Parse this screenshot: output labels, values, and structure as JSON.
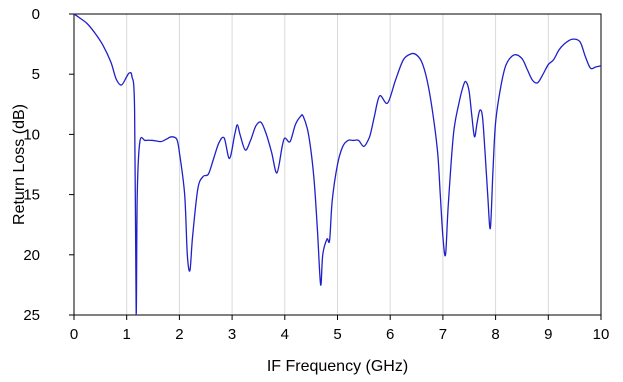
{
  "chart_data": {
    "type": "line",
    "title": "",
    "xlabel": "IF Frequency (GHz)",
    "ylabel": "Return Loss (dB)",
    "xlim": [
      0,
      10
    ],
    "ylim": [
      0,
      25
    ],
    "y_inverted": true,
    "x_ticks": [
      0,
      1,
      2,
      3,
      4,
      5,
      6,
      7,
      8,
      9,
      10
    ],
    "y_ticks": [
      0,
      5,
      10,
      15,
      20,
      25
    ],
    "grid": "vertical",
    "line_color": "#2020c8",
    "series": [
      {
        "x": [
          0.0,
          0.1,
          0.25,
          0.4,
          0.55,
          0.7,
          0.8,
          0.9,
          1.0,
          1.05,
          1.1,
          1.15,
          1.18,
          1.2,
          1.25,
          1.35,
          1.5,
          1.65,
          1.75,
          1.85,
          1.95,
          2.0,
          2.1,
          2.15,
          2.2,
          2.25,
          2.35,
          2.45,
          2.55,
          2.65,
          2.75,
          2.85,
          2.95,
          3.05,
          3.1,
          3.15,
          3.25,
          3.35,
          3.45,
          3.55,
          3.65,
          3.75,
          3.85,
          3.95,
          4.0,
          4.1,
          4.2,
          4.3,
          4.35,
          4.45,
          4.55,
          4.62,
          4.68,
          4.72,
          4.8,
          4.85,
          4.9,
          5.0,
          5.1,
          5.2,
          5.3,
          5.4,
          5.5,
          5.6,
          5.65,
          5.7,
          5.8,
          5.95,
          6.1,
          6.25,
          6.4,
          6.5,
          6.6,
          6.7,
          6.8,
          6.9,
          6.95,
          7.0,
          7.05,
          7.1,
          7.2,
          7.3,
          7.4,
          7.45,
          7.5,
          7.55,
          7.6,
          7.65,
          7.7,
          7.75,
          7.8,
          7.85,
          7.9,
          7.95,
          8.0,
          8.1,
          8.2,
          8.35,
          8.5,
          8.6,
          8.7,
          8.8,
          8.9,
          9.0,
          9.1,
          9.2,
          9.3,
          9.45,
          9.6,
          9.7,
          9.8,
          9.9,
          10.0
        ],
        "y": [
          0.0,
          0.3,
          0.8,
          1.6,
          2.6,
          4.0,
          5.4,
          5.9,
          5.2,
          4.9,
          5.2,
          8.0,
          25.0,
          15.0,
          10.6,
          10.5,
          10.5,
          10.6,
          10.4,
          10.2,
          10.4,
          11.5,
          15.0,
          20.0,
          21.3,
          18.5,
          14.5,
          13.5,
          13.3,
          12.0,
          10.7,
          10.3,
          12.0,
          10.0,
          9.2,
          10.0,
          11.3,
          10.5,
          9.3,
          9.0,
          10.0,
          11.5,
          13.2,
          11.0,
          10.3,
          10.6,
          9.2,
          8.5,
          8.5,
          10.0,
          13.5,
          18.0,
          22.5,
          20.0,
          18.7,
          18.8,
          15.5,
          12.5,
          11.0,
          10.5,
          10.5,
          10.5,
          11.0,
          10.3,
          9.5,
          8.5,
          6.8,
          7.4,
          5.5,
          3.8,
          3.3,
          3.4,
          4.0,
          5.5,
          8.0,
          11.5,
          15.0,
          18.5,
          20.0,
          16.0,
          10.0,
          7.5,
          5.8,
          5.7,
          6.5,
          8.5,
          10.2,
          9.0,
          8.0,
          8.5,
          11.5,
          15.0,
          17.8,
          13.0,
          9.0,
          6.0,
          4.2,
          3.4,
          3.7,
          4.6,
          5.5,
          5.7,
          5.0,
          4.2,
          3.8,
          3.0,
          2.5,
          2.1,
          2.3,
          3.5,
          4.5,
          4.4,
          4.3
        ]
      }
    ]
  }
}
